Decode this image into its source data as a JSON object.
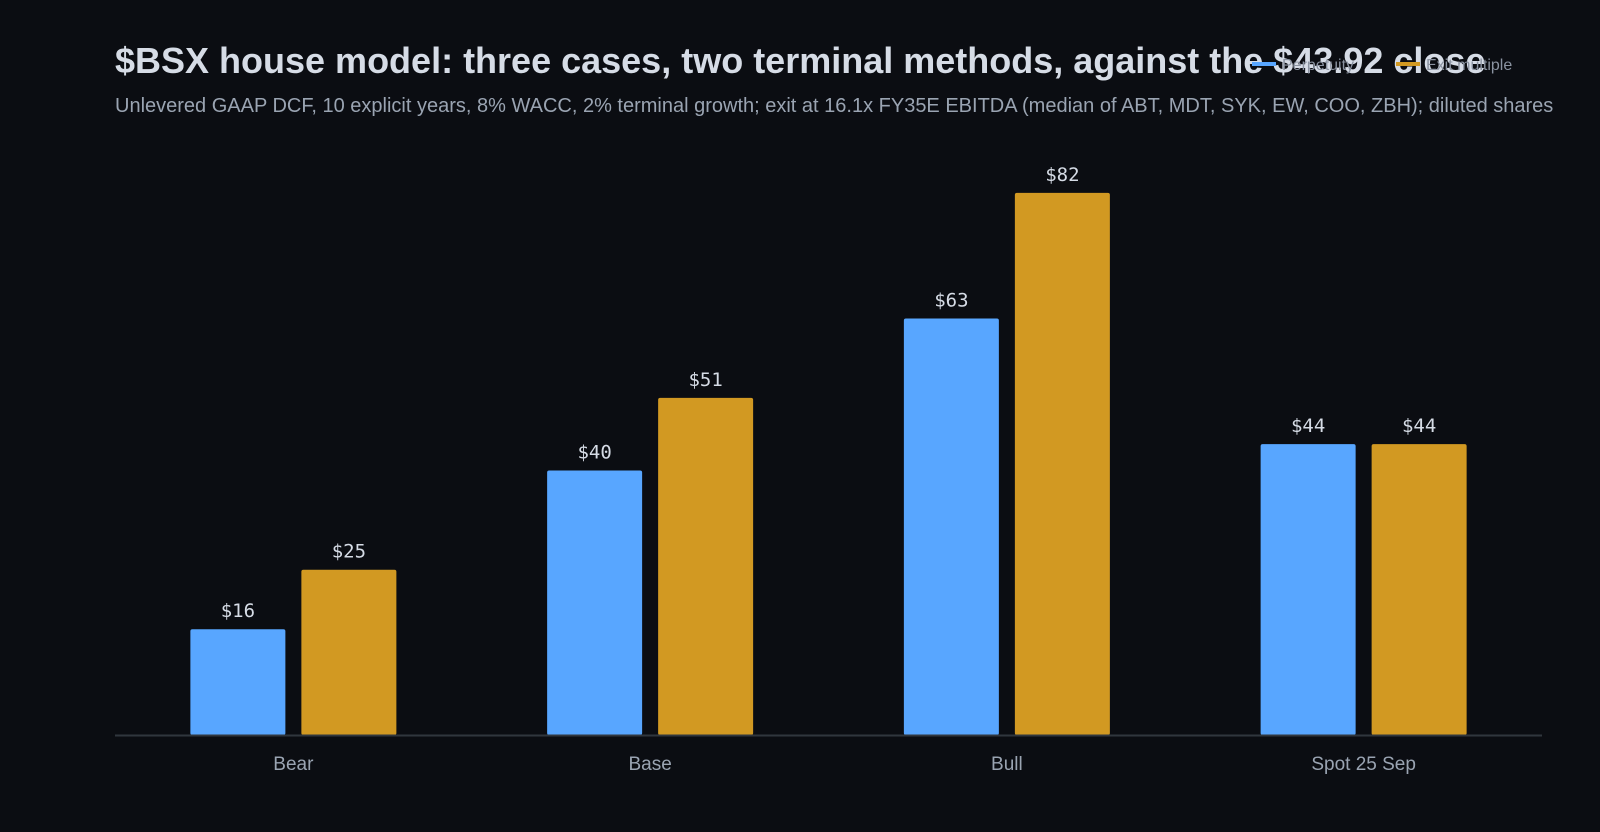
{
  "title": "$BSX house model: three cases, two terminal methods, against the $43.92 close",
  "subtitle": "Unlevered GAAP DCF, 10 explicit years, 8% WACC, 2% terminal growth; exit at 16.1x FY35E EBITDA (median of ABT, MDT, SYK, EW, COO, ZBH); diluted shares",
  "chart_data": {
    "type": "bar",
    "categories": [
      "Bear",
      "Base",
      "Bull",
      "Spot 25 Sep"
    ],
    "series": [
      {
        "name": "Perpetuity",
        "values": [
          16,
          40,
          63,
          44
        ],
        "labels": [
          "$16",
          "$40",
          "$63",
          "$44"
        ],
        "color": "#58a6ff"
      },
      {
        "name": "Exit multiple",
        "values": [
          25,
          51,
          82,
          44
        ],
        "labels": [
          "$25",
          "$51",
          "$82",
          "$44"
        ],
        "color": "#d29922"
      }
    ],
    "ylim": [
      0,
      90
    ],
    "grid": false,
    "legend_position": "top-right"
  },
  "colors": {
    "background": "#0b0d12",
    "axis": "#30363d"
  }
}
